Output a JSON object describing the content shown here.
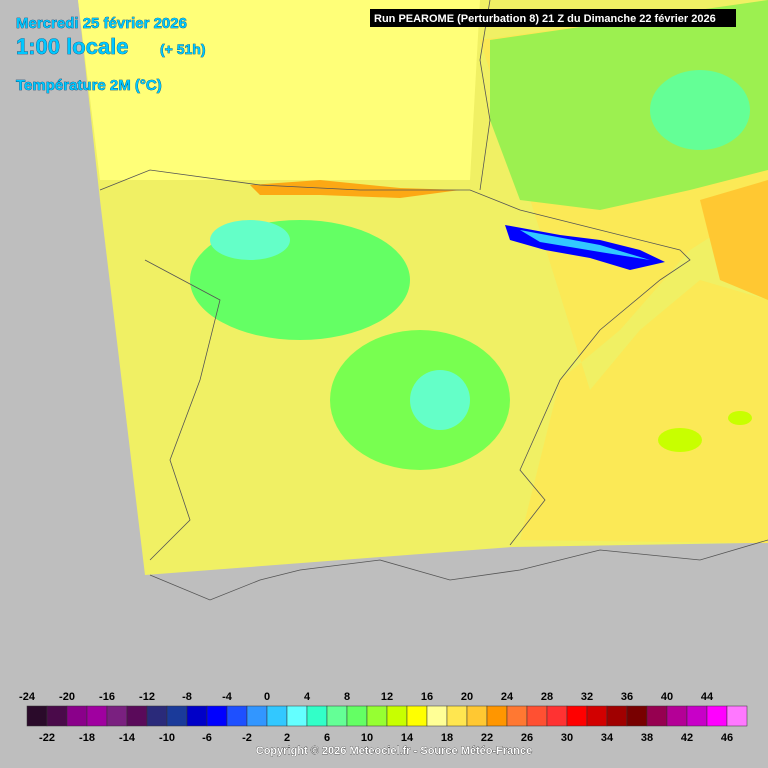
{
  "header": {
    "date": "Mercredi 25 février 2026",
    "time": "1:00 locale",
    "lead": "(+ 51h)",
    "parameter": "Température 2M (°C)",
    "run": "Run PEAROME (Perturbation 8) 21 Z du Dimanche 22 février 2026"
  },
  "legend": {
    "labels": [
      -24,
      -22,
      -20,
      -18,
      -16,
      -14,
      -12,
      -10,
      -8,
      -6,
      -4,
      -2,
      0,
      2,
      4,
      6,
      8,
      10,
      12,
      14,
      16,
      18,
      20,
      22,
      24,
      26,
      28,
      30,
      32,
      34,
      36,
      38,
      40,
      42,
      44,
      46
    ],
    "colors": [
      "#2a0a2a",
      "#4a0a4a",
      "#8a008a",
      "#a000a0",
      "#7a2080",
      "#5a0a5a",
      "#2a2a7a",
      "#1a3a9a",
      "#0000c8",
      "#0000ff",
      "#1e50ff",
      "#3296ff",
      "#32c8ff",
      "#64ffff",
      "#32ffc8",
      "#64ff96",
      "#64ff64",
      "#96ff32",
      "#c8ff00",
      "#ffff00",
      "#ffff96",
      "#ffe650",
      "#ffc832",
      "#ff9600",
      "#ff7832",
      "#ff5032",
      "#ff3232",
      "#ff0000",
      "#d20000",
      "#a00000",
      "#780000",
      "#960050",
      "#b40096",
      "#c800c8",
      "#ff00ff",
      "#ff78ff"
    ]
  },
  "footer": {
    "copyright": "Copyright © 2026 Meteociel.fr - Source Météo-France"
  }
}
